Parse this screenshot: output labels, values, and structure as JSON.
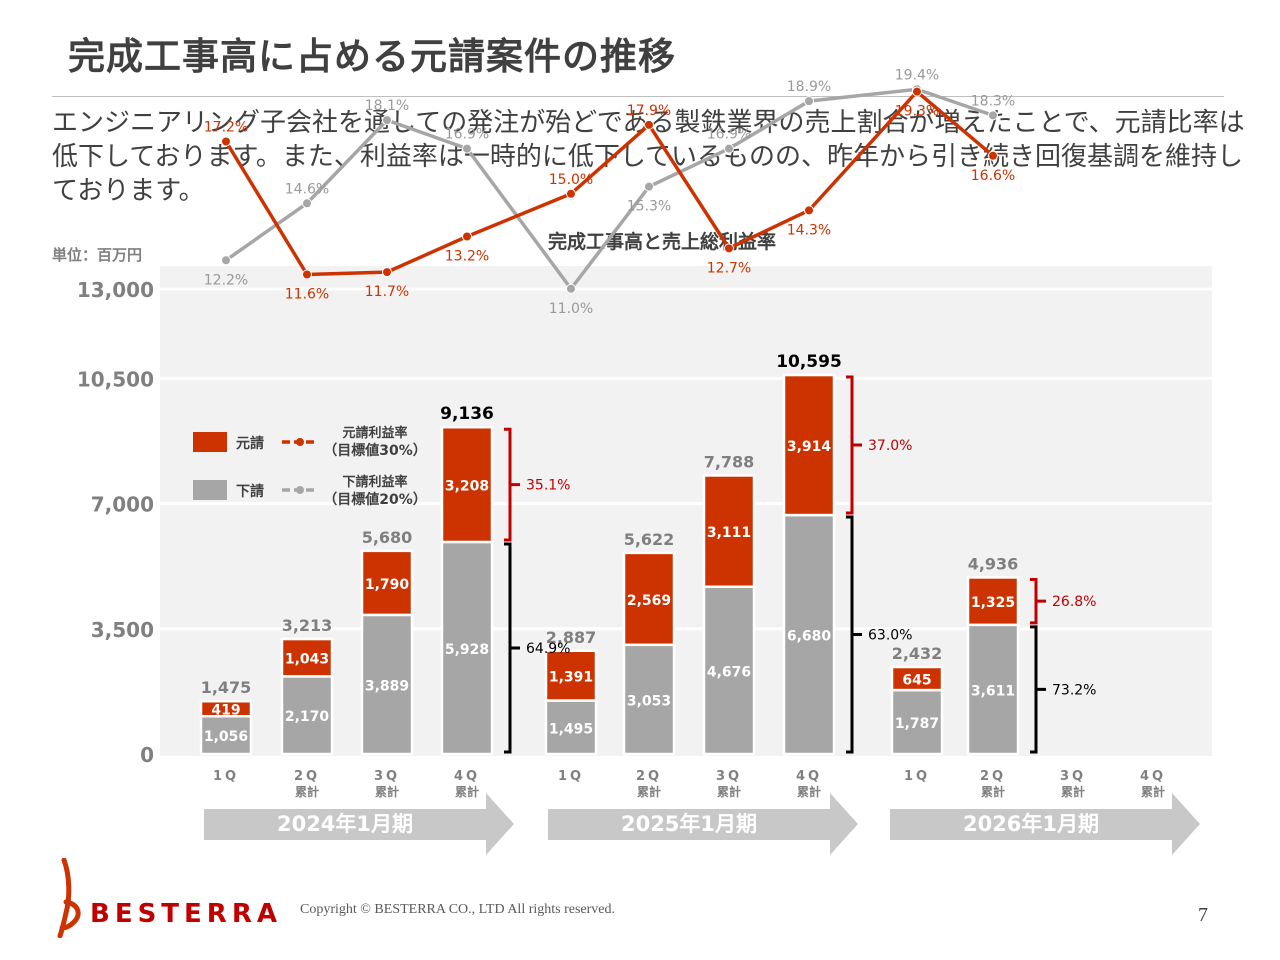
{
  "page": {
    "title": "完成工事高に占める元請案件の推移",
    "lead": "エンジニアリング子会社を通しての発注が殆どである製鉄業界の売上割合が増えたことで、元請比率は低下しております。また、利益率は一時的に低下しているものの、昨年から引き続き回復基調を維持しております。",
    "unit": "単位：百万円",
    "copyright": "Copyright © BESTERRA CO., LTD All rights reserved.",
    "page_number": "7",
    "logo_text": "BESTERRA"
  },
  "colors": {
    "prime": "#cc3300",
    "sub": "#a6a6a6",
    "plot_bg": "#f2f2f2",
    "arrow": "#c8c8c8",
    "text": "#404040"
  },
  "chart_data": {
    "type": "bar",
    "title": "完成工事高と売上総利益率",
    "ylim": [
      0,
      13600
    ],
    "yticks": [
      "0",
      "3,500",
      "7,000",
      "10,500",
      "13,000"
    ],
    "grid": true,
    "legend_position": "top-left",
    "legend": {
      "prime_bar": "元請",
      "sub_bar": "下請",
      "prime_rate": "元請利益率\n（目標値30%）",
      "sub_rate": "下請利益率\n（目標値20%）"
    },
    "fiscal_years": [
      "2024年1月期",
      "2025年1月期",
      "2026年1月期"
    ],
    "categories": [
      {
        "q": "1Q",
        "sub": ""
      },
      {
        "q": "2Q",
        "sub": "累計"
      },
      {
        "q": "3Q",
        "sub": "累計"
      },
      {
        "q": "4Q",
        "sub": "累計"
      },
      {
        "q": "1Q",
        "sub": ""
      },
      {
        "q": "2Q",
        "sub": "累計"
      },
      {
        "q": "3Q",
        "sub": "累計"
      },
      {
        "q": "4Q",
        "sub": "累計"
      },
      {
        "q": "1Q",
        "sub": ""
      },
      {
        "q": "2Q",
        "sub": "累計"
      },
      {
        "q": "3Q",
        "sub": "累計"
      },
      {
        "q": "4Q",
        "sub": "累計"
      }
    ],
    "series": [
      {
        "name": "下請",
        "values": [
          1056,
          2170,
          3889,
          5928,
          1495,
          3053,
          4676,
          6680,
          1787,
          3611,
          null,
          null
        ],
        "labels": [
          "1,056",
          "2,170",
          "3,889",
          "5,928",
          "1,495",
          "3,053",
          "4,676",
          "6,680",
          "1,787",
          "3,611",
          "",
          ""
        ]
      },
      {
        "name": "元請",
        "values": [
          419,
          1043,
          1790,
          3208,
          1391,
          2569,
          3111,
          3914,
          645,
          1325,
          null,
          null
        ],
        "labels": [
          "419",
          "1,043",
          "1,790",
          "3,208",
          "1,391",
          "2,569",
          "3,111",
          "3,914",
          "645",
          "1,325",
          "",
          ""
        ]
      }
    ],
    "totals": [
      "1,475",
      "3,213",
      "5,680",
      "9,136",
      "2,887",
      "5,622",
      "7,788",
      "10,595",
      "2,432",
      "4,936",
      "",
      ""
    ],
    "rates": {
      "prime": [
        17.2,
        11.6,
        11.7,
        13.2,
        15.0,
        17.9,
        12.7,
        14.3,
        19.3,
        16.6,
        null,
        null
      ],
      "sub": [
        12.2,
        14.6,
        18.1,
        16.9,
        11.0,
        15.3,
        16.9,
        18.9,
        19.4,
        18.3,
        null,
        null
      ]
    },
    "shares": [
      {
        "bar": 3,
        "prime": "35.1%",
        "sub": "64.9%"
      },
      {
        "bar": 7,
        "prime": "37.0%",
        "sub": "63.0%"
      },
      {
        "bar": 9,
        "prime": "26.8%",
        "sub": "73.2%"
      }
    ]
  }
}
